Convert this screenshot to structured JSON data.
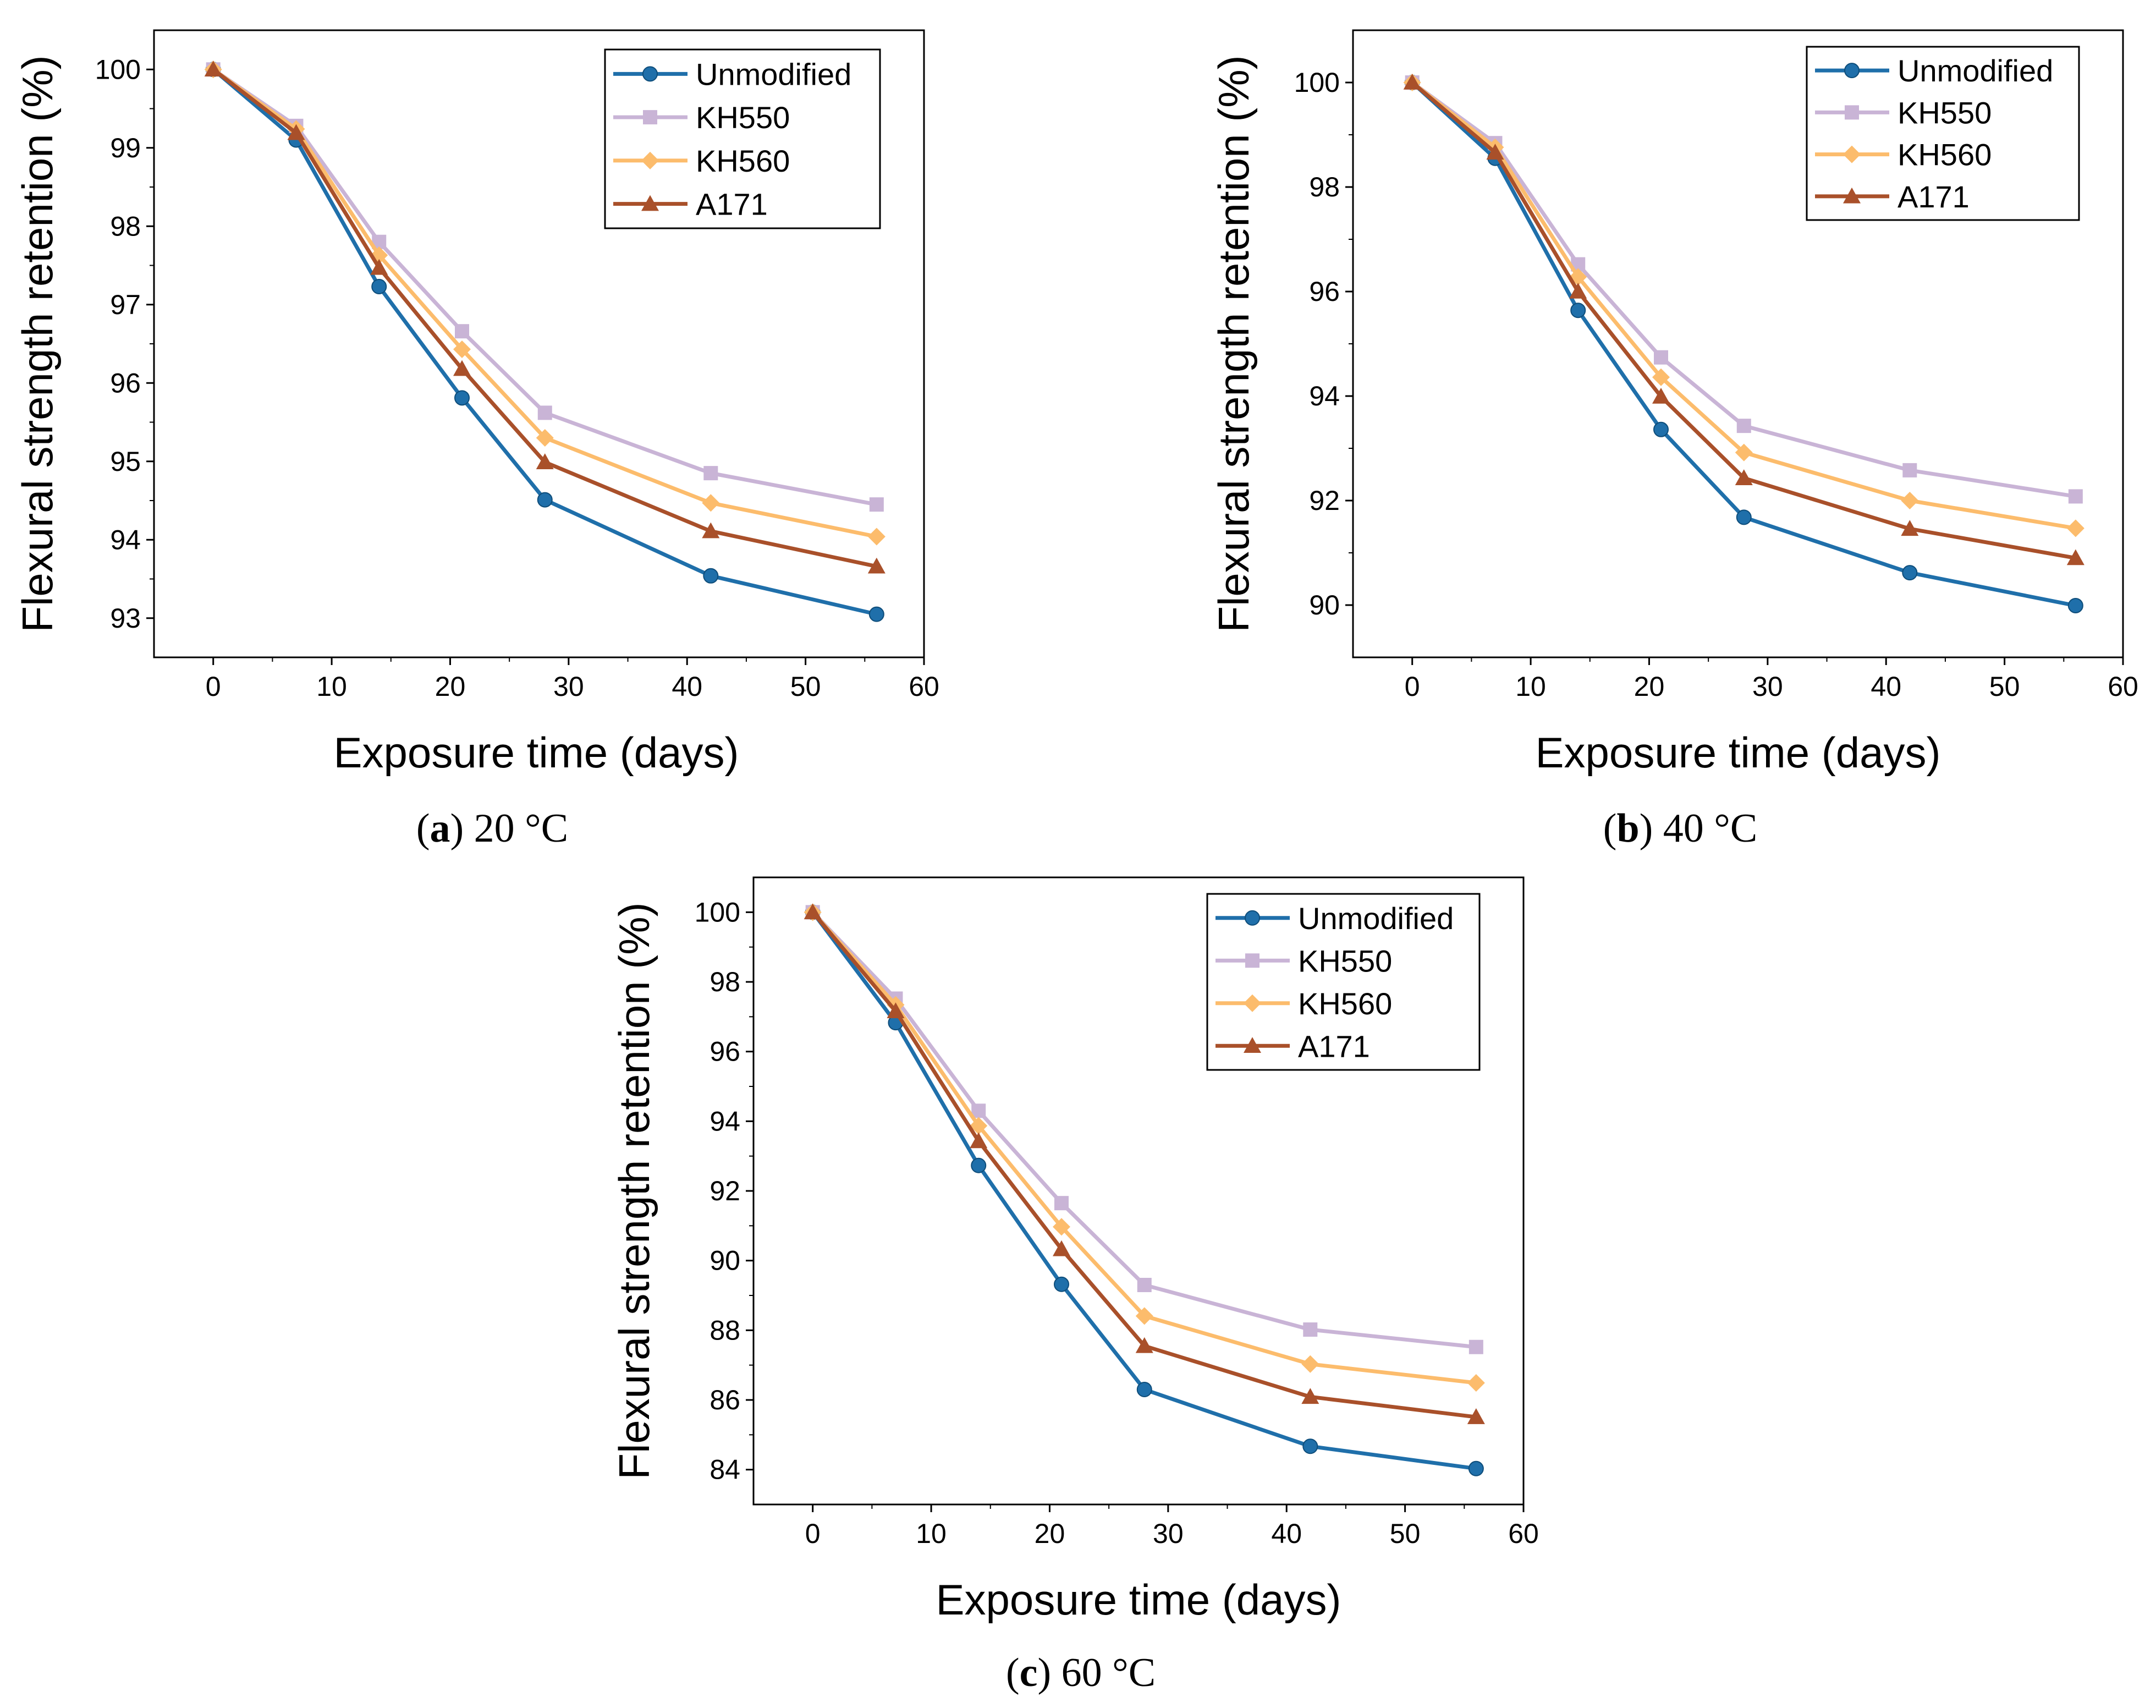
{
  "chart_data": [
    {
      "type": "line",
      "caption_letter": "a",
      "caption_text": " 20 °C",
      "xlabel": "Exposure time (days)",
      "ylabel": "Flexural strength retention (%)",
      "xlim": [
        -5,
        60
      ],
      "ylim": [
        92.5,
        100.5
      ],
      "xticks": [
        "0",
        "10",
        "20",
        "30",
        "40",
        "50",
        "60"
      ],
      "yticks": [
        "93",
        "94",
        "95",
        "96",
        "97",
        "98",
        "99",
        "100"
      ],
      "x": [
        0,
        7,
        14,
        21,
        28,
        42,
        56
      ],
      "legend_position": "top-right",
      "series": [
        {
          "name": "Unmodified",
          "values": [
            100,
            99.1,
            97.23,
            95.81,
            94.51,
            93.54,
            93.05
          ]
        },
        {
          "name": "KH550",
          "values": [
            100,
            99.28,
            97.8,
            96.66,
            95.62,
            94.85,
            94.45
          ]
        },
        {
          "name": "KH560",
          "values": [
            100,
            99.24,
            97.63,
            96.43,
            95.3,
            94.47,
            94.04
          ]
        },
        {
          "name": "A171",
          "values": [
            100,
            99.19,
            97.47,
            96.18,
            94.99,
            94.11,
            93.66
          ]
        }
      ]
    },
    {
      "type": "line",
      "caption_letter": "b",
      "caption_text": " 40 °C",
      "xlabel": "Exposure time (days)",
      "ylabel": "Flexural strength retention (%)",
      "xlim": [
        -5,
        60
      ],
      "ylim": [
        89,
        101
      ],
      "xticks": [
        "0",
        "10",
        "20",
        "30",
        "40",
        "50",
        "60"
      ],
      "yticks": [
        "90",
        "92",
        "94",
        "96",
        "98",
        "100"
      ],
      "x": [
        0,
        7,
        14,
        21,
        28,
        42,
        56
      ],
      "legend_position": "top-right",
      "series": [
        {
          "name": "Unmodified",
          "values": [
            100,
            98.55,
            95.64,
            93.36,
            91.68,
            90.62,
            89.99
          ]
        },
        {
          "name": "KH550",
          "values": [
            100,
            98.84,
            96.52,
            94.74,
            93.43,
            92.58,
            92.08
          ]
        },
        {
          "name": "KH560",
          "values": [
            100,
            98.76,
            96.28,
            94.36,
            92.92,
            92.0,
            91.47
          ]
        },
        {
          "name": "A171",
          "values": [
            100,
            98.66,
            96.0,
            93.99,
            92.43,
            91.46,
            90.9
          ]
        }
      ]
    },
    {
      "type": "line",
      "caption_letter": "c",
      "caption_text": " 60 °C",
      "xlabel": "Exposure time (days)",
      "ylabel": "Flexural strength retention (%)",
      "xlim": [
        -5,
        60
      ],
      "ylim": [
        83,
        101
      ],
      "xticks": [
        "0",
        "10",
        "20",
        "30",
        "40",
        "50",
        "60"
      ],
      "yticks": [
        "84",
        "86",
        "88",
        "90",
        "92",
        "94",
        "96",
        "98",
        "100"
      ],
      "x": [
        0,
        7,
        14,
        21,
        28,
        42,
        56
      ],
      "legend_position": "top-right",
      "series": [
        {
          "name": "Unmodified",
          "values": [
            100,
            96.83,
            92.73,
            89.32,
            86.3,
            84.67,
            84.03
          ]
        },
        {
          "name": "KH550",
          "values": [
            100,
            97.52,
            94.3,
            91.65,
            89.3,
            88.02,
            87.52
          ]
        },
        {
          "name": "KH560",
          "values": [
            100,
            97.34,
            93.87,
            90.97,
            88.41,
            87.03,
            86.49
          ]
        },
        {
          "name": "A171",
          "values": [
            100,
            97.16,
            93.43,
            90.33,
            87.55,
            86.09,
            85.51
          ]
        }
      ]
    }
  ],
  "series_styles": [
    {
      "color": "#1f6faa",
      "marker": "circle"
    },
    {
      "color": "#c9b4d6",
      "marker": "square"
    },
    {
      "color": "#fcbc6c",
      "marker": "diamond"
    },
    {
      "color": "#a9502a",
      "marker": "triangle"
    }
  ]
}
